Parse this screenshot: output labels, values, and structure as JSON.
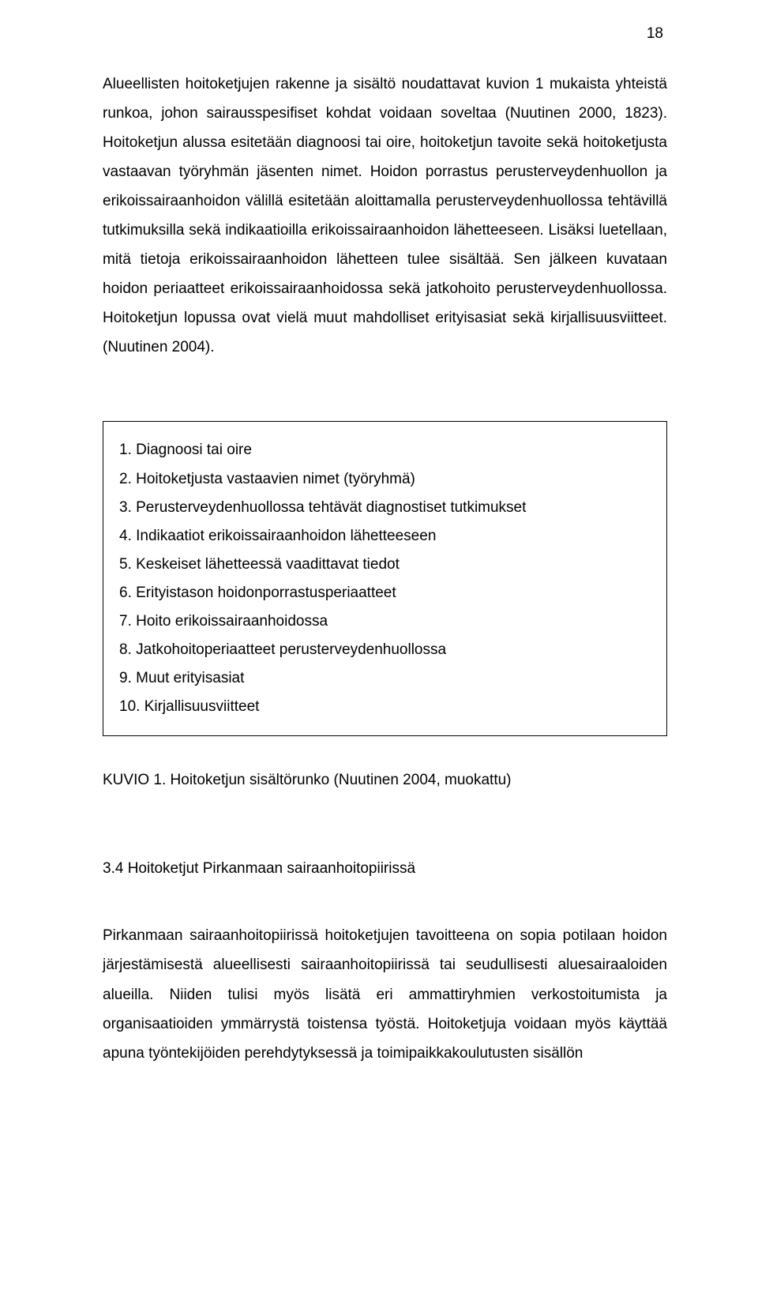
{
  "pageNumber": "18",
  "paragraph1": "Alueellisten hoitoketjujen rakenne ja sisältö noudattavat kuvion 1 mukaista yhteistä runkoa, johon sairausspesifiset kohdat voidaan soveltaa (Nuutinen 2000, 1823). Hoitoketjun alussa esitetään diagnoosi tai oire, hoitoketjun tavoite sekä hoitoketjusta vastaavan työryhmän jäsenten nimet. Hoidon porrastus perusterveydenhuollon ja erikoissairaanhoidon välillä esitetään aloittamalla perusterveydenhuollossa tehtävillä tutkimuksilla sekä indikaatioilla erikoissairaanhoidon lähetteeseen. Lisäksi luetellaan, mitä tietoja erikoissairaanhoidon lähetteen tulee sisältää. Sen jälkeen kuvataan hoidon periaatteet erikoissairaanhoidossa sekä jatkohoito perusterveydenhuollossa. Hoitoketjun lopussa ovat vielä muut mahdolliset erityisasiat sekä kirjallisuusviitteet. (Nuutinen 2004).",
  "boxItems": [
    "1. Diagnoosi tai oire",
    "2. Hoitoketjusta vastaavien nimet (työryhmä)",
    "3. Perusterveydenhuollossa tehtävät diagnostiset tutkimukset",
    "4. Indikaatiot erikoissairaanhoidon lähetteeseen",
    "5. Keskeiset lähetteessä vaadittavat tiedot",
    "6. Erityistason hoidonporrastusperiaatteet",
    "7. Hoito erikoissairaanhoidossa",
    "8. Jatkohoitoperiaatteet perusterveydenhuollossa",
    "9. Muut erityisasiat",
    "10. Kirjallisuusviitteet"
  ],
  "figureCaption": "KUVIO 1. Hoitoketjun sisältörunko (Nuutinen 2004, muokattu)",
  "sectionHeading": "3.4 Hoitoketjut Pirkanmaan sairaanhoitopiirissä",
  "paragraph2": "Pirkanmaan sairaanhoitopiirissä hoitoketjujen tavoitteena on sopia potilaan hoidon järjestämisestä alueellisesti sairaanhoitopiirissä tai seudullisesti aluesairaaloiden alueilla. Niiden tulisi myös lisätä eri ammattiryhmien verkostoitumista ja organisaatioiden ymmärrystä toistensa työstä. Hoitoketjuja voidaan myös käyttää apuna työntekijöiden perehdytyksessä ja toimipaikkakoulutusten sisällön"
}
